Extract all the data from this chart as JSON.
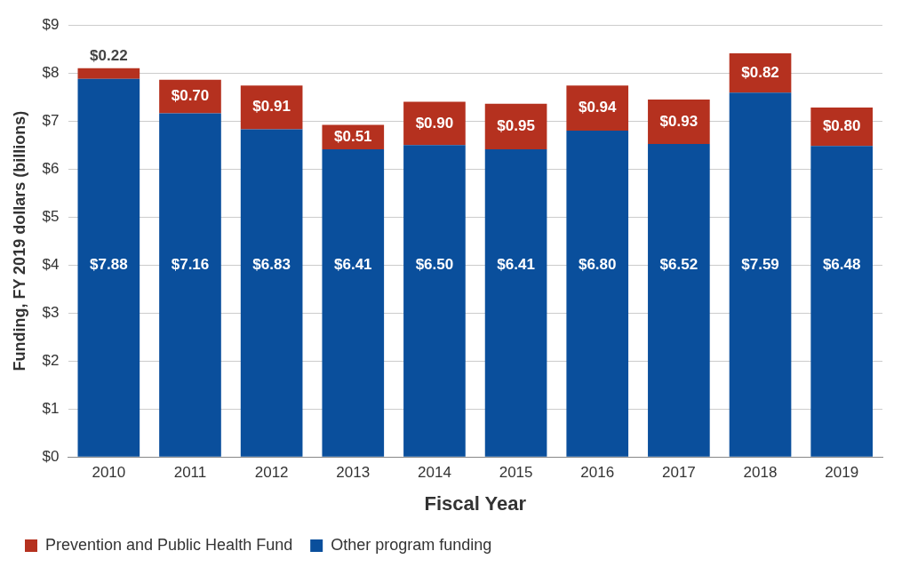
{
  "chart_data": {
    "type": "bar",
    "stacked": true,
    "xlabel": "Fiscal Year",
    "ylabel": "Funding, FY 2019 dollars (billions)",
    "categories": [
      "2010",
      "2011",
      "2012",
      "2013",
      "2014",
      "2015",
      "2016",
      "2017",
      "2018",
      "2019"
    ],
    "series": [
      {
        "name": "Other program funding",
        "color": "#0a4f9c",
        "values": [
          7.88,
          7.16,
          6.83,
          6.41,
          6.5,
          6.41,
          6.8,
          6.52,
          7.59,
          6.48
        ],
        "value_labels": [
          "$7.88",
          "$7.16",
          "$6.83",
          "$6.41",
          "$6.50",
          "$6.41",
          "$6.80",
          "$6.52",
          "$7.59",
          "$6.48"
        ]
      },
      {
        "name": "Prevention and Public Health Fund",
        "color": "#b5311f",
        "values": [
          0.22,
          0.7,
          0.91,
          0.51,
          0.9,
          0.95,
          0.94,
          0.93,
          0.82,
          0.8
        ],
        "value_labels": [
          "$0.22",
          "$0.70",
          "$0.91",
          "$0.51",
          "$0.90",
          "$0.95",
          "$0.94",
          "$0.93",
          "$0.82",
          "$0.80"
        ]
      }
    ],
    "ylim": [
      0,
      9
    ],
    "yticks": [
      {
        "value": 0,
        "label": "$0"
      },
      {
        "value": 1,
        "label": "$1"
      },
      {
        "value": 2,
        "label": "$2"
      },
      {
        "value": 3,
        "label": "$3"
      },
      {
        "value": 4,
        "label": "$4"
      },
      {
        "value": 5,
        "label": "$5"
      },
      {
        "value": 6,
        "label": "$6"
      },
      {
        "value": 7,
        "label": "$7"
      },
      {
        "value": 8,
        "label": "$8"
      },
      {
        "value": 9,
        "label": "$9"
      }
    ],
    "grid": "y",
    "legend": "bottom left"
  }
}
